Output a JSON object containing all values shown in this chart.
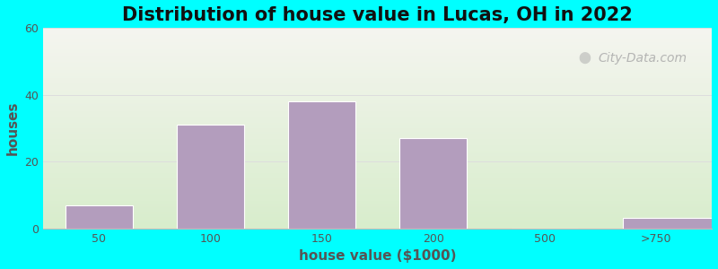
{
  "title": "Distribution of house value in Lucas, OH in 2022",
  "xlabel": "house value ($1000)",
  "ylabel": "houses",
  "bar_labels": [
    "50",
    "100",
    "150",
    "200",
    "500",
    ">750"
  ],
  "bar_values": [
    7,
    31,
    38,
    27,
    0,
    3
  ],
  "bar_color": "#b39dbd",
  "bar_edge_color": "#ffffff",
  "ylim": [
    0,
    60
  ],
  "yticks": [
    0,
    20,
    40,
    60
  ],
  "background_outer": "#00ffff",
  "bg_top_color": "#f5f5f0",
  "bg_bottom_color": "#d8edcc",
  "watermark_text": "City-Data.com",
  "title_fontsize": 15,
  "axis_label_fontsize": 11,
  "tick_fontsize": 9,
  "grid_color": "#dddddd",
  "tick_color": "#555555",
  "label_color": "#555555"
}
